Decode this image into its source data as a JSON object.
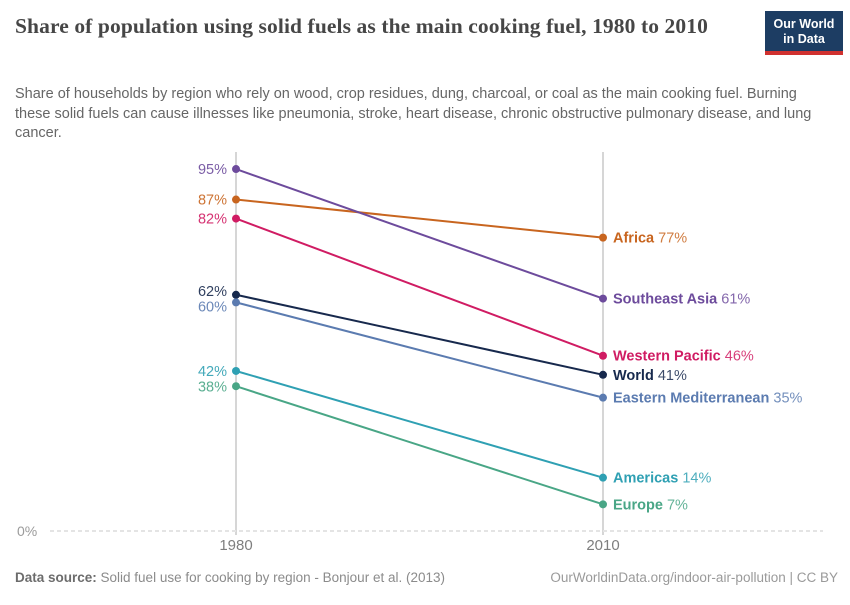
{
  "logo": {
    "line1": "Our World",
    "line2": "in Data",
    "bg_color": "#1d3d63",
    "accent_color": "#d0312f"
  },
  "chart_data": {
    "type": "line",
    "variant": "slope",
    "title": "Share of population using solid fuels as the main cooking fuel, 1980 to 2010",
    "subtitle": "Share of households by region who rely on wood, crop residues, dung, charcoal, or coal as the main cooking fuel. Burning these solid fuels can cause illnesses like pneumonia, stroke, heart disease, chronic obstructive pulmonary disease, and lung cancer.",
    "x": [
      1980,
      2010
    ],
    "x_labels": [
      "1980",
      "2010"
    ],
    "ylim": [
      0,
      100
    ],
    "baseline_label": "0%",
    "value_suffix": "%",
    "grid": "zero-baseline-dotted",
    "legend_position": "right-inline-labels",
    "series": [
      {
        "name": "Africa",
        "values": [
          87,
          77
        ],
        "color": "#c8651f"
      },
      {
        "name": "Southeast Asia",
        "values": [
          95,
          61
        ],
        "color": "#6d4b9c"
      },
      {
        "name": "Western Pacific",
        "values": [
          82,
          46
        ],
        "color": "#d01c63"
      },
      {
        "name": "World",
        "values": [
          62,
          41
        ],
        "color": "#17294d"
      },
      {
        "name": "Eastern Mediterranean",
        "values": [
          60,
          35
        ],
        "color": "#5b7bb0"
      },
      {
        "name": "Americas",
        "values": [
          42,
          14
        ],
        "color": "#2fa0b3"
      },
      {
        "name": "Europe",
        "values": [
          38,
          7
        ],
        "color": "#49a686"
      }
    ]
  },
  "footer": {
    "source_label": "Data source:",
    "source_text": " Solid fuel use for cooking by region - Bonjour et al. (2013)",
    "attribution": "OurWorldinData.org/indoor-air-pollution | CC BY"
  }
}
